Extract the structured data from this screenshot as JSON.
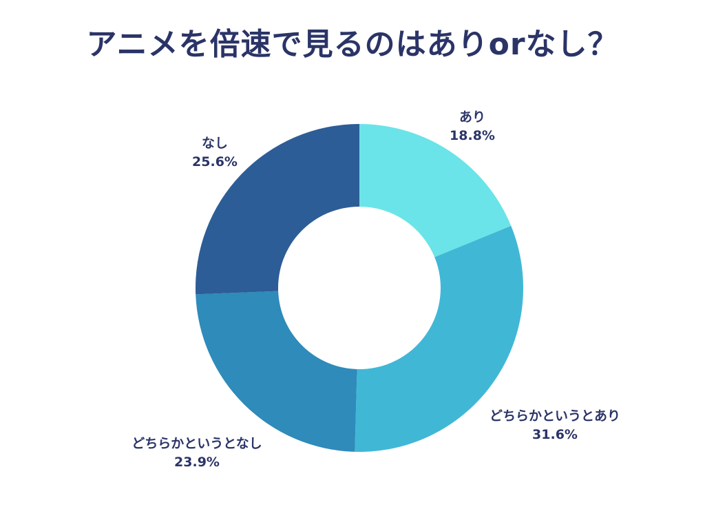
{
  "chart_data": {
    "type": "pie",
    "donut": true,
    "title": "アニメを倍速で見るのはありorなし？",
    "categories": [
      "あり",
      "どちらかというとあり",
      "どちらかというとなし",
      "なし"
    ],
    "values": [
      18.8,
      31.6,
      23.9,
      25.6
    ],
    "value_labels": [
      "18.8%",
      "31.6%",
      "23.9%",
      "25.6%"
    ],
    "colors": [
      "#6ae4e8",
      "#41b7d6",
      "#2e8bba",
      "#2d5d96"
    ],
    "legend": "none"
  }
}
